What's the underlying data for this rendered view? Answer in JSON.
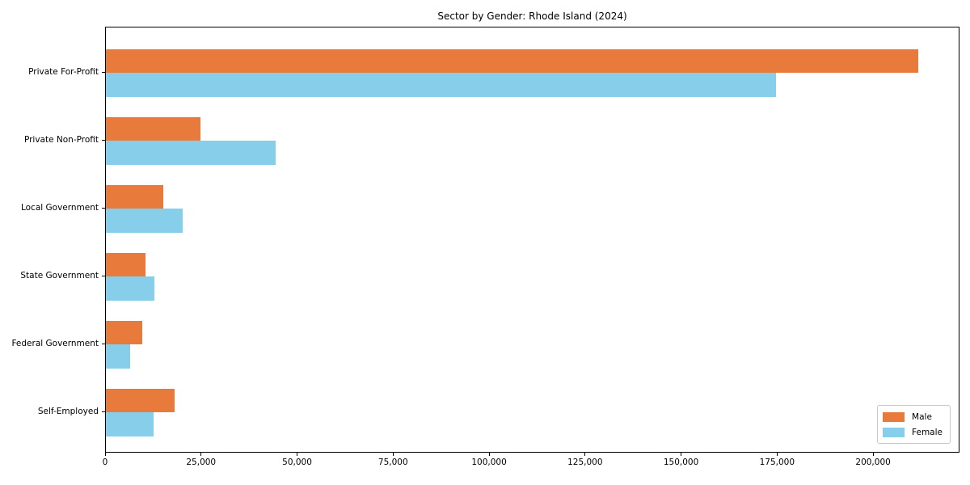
{
  "chart_data": {
    "type": "bar",
    "orientation": "horizontal",
    "title": "Sector by Gender: Rhode Island (2024)",
    "categories": [
      "Private For-Profit",
      "Private Non-Profit",
      "Local Government",
      "State Government",
      "Federal Government",
      "Self-Employed"
    ],
    "series": [
      {
        "name": "Male",
        "color": "#e87a3c",
        "values": [
          211500,
          24700,
          14900,
          10400,
          9500,
          17900
        ]
      },
      {
        "name": "Female",
        "color": "#87ceeb",
        "values": [
          174500,
          44200,
          20000,
          12600,
          6200,
          12400
        ]
      }
    ],
    "xlim": [
      0,
      222500
    ],
    "x_ticks": [
      0,
      25000,
      50000,
      75000,
      100000,
      125000,
      150000,
      175000,
      200000
    ],
    "x_tick_labels": [
      "0",
      "25,000",
      "50,000",
      "75,000",
      "100,000",
      "125,000",
      "150,000",
      "175,000",
      "200,000"
    ],
    "legend": {
      "position": "lower-right",
      "entries": [
        "Male",
        "Female"
      ]
    },
    "grid": false,
    "background": "#ffffff"
  }
}
